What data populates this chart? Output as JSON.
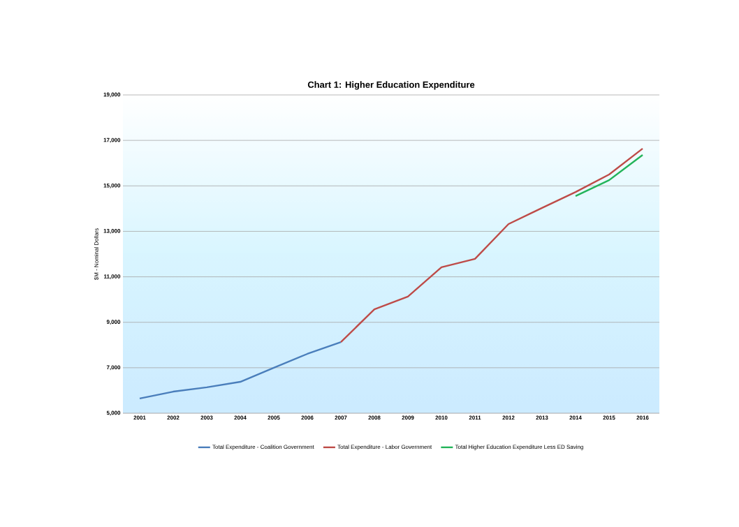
{
  "chart_data": {
    "type": "line",
    "title": "Chart 1: Higher Education Expenditure",
    "ylabel": "$M - Nominal Dollars",
    "categories": [
      "2001",
      "2002",
      "2003",
      "2004",
      "2005",
      "2006",
      "2007",
      "2008",
      "2009",
      "2010",
      "2011",
      "2012",
      "2013",
      "2014",
      "2015",
      "2016"
    ],
    "series": [
      {
        "name": "Total Expenditure - Coalition Government",
        "color": "#4a7ebb",
        "values": [
          5650,
          5950,
          6140,
          6380,
          7000,
          7610,
          8130,
          null,
          null,
          null,
          null,
          null,
          null,
          null,
          null,
          null
        ]
      },
      {
        "name": "Total Expenditure - Labor Government",
        "color": "#be4b48",
        "values": [
          null,
          null,
          null,
          null,
          null,
          null,
          8130,
          9570,
          10130,
          11420,
          11790,
          13320,
          14030,
          14730,
          15500,
          16640
        ]
      },
      {
        "name": "Total Higher Education Expenditure Less ED Saving",
        "color": "#23b45a",
        "values": [
          null,
          null,
          null,
          null,
          null,
          null,
          null,
          null,
          null,
          null,
          null,
          null,
          null,
          14550,
          15250,
          16360
        ]
      }
    ],
    "ylim": [
      5000,
      19000
    ],
    "yticks": [
      {
        "value": 5000,
        "label": "5,000"
      },
      {
        "value": 7000,
        "label": "7,000"
      },
      {
        "value": 9000,
        "label": "9,000"
      },
      {
        "value": 11000,
        "label": "11,000"
      },
      {
        "value": 13000,
        "label": "13,000"
      },
      {
        "value": 15000,
        "label": "15,000"
      },
      {
        "value": 17000,
        "label": "17,000"
      },
      {
        "value": 19000,
        "label": "19,000"
      }
    ],
    "grid": "y",
    "legend": "bottom",
    "marker": "none",
    "line_style": "solid"
  }
}
